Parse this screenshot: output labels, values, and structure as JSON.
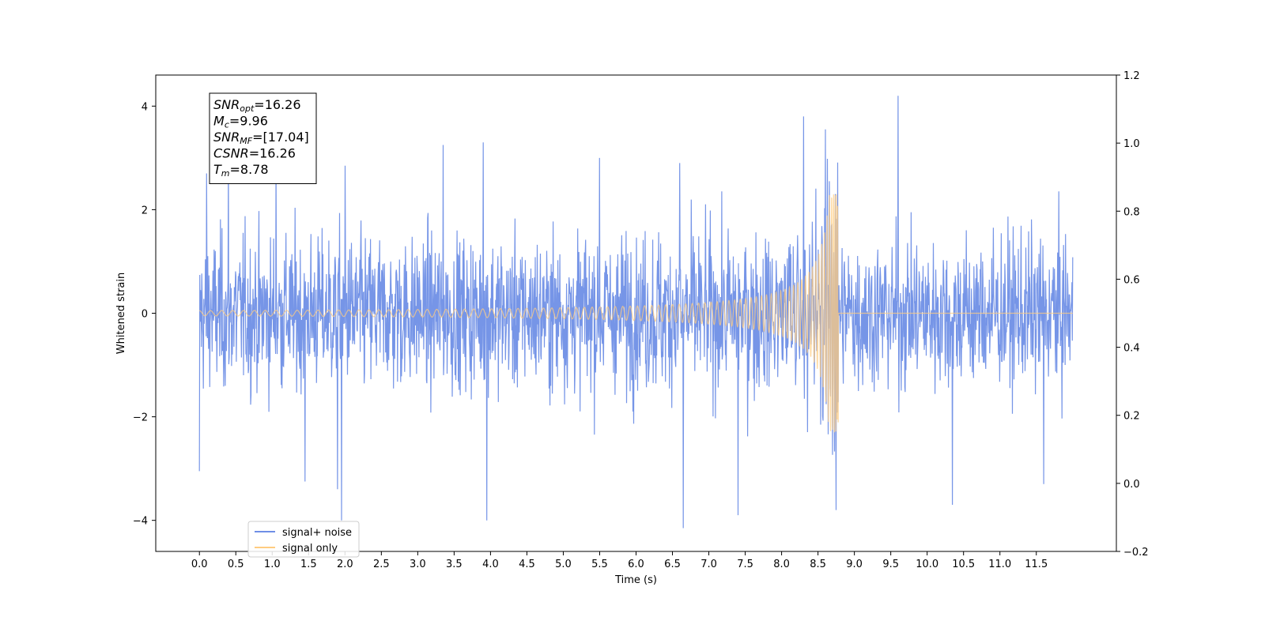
{
  "chart_data": {
    "type": "line",
    "xlabel": "Time (s)",
    "ylabel": "Whitened strain",
    "xlim": [
      -0.6,
      12.6
    ],
    "ylim": [
      -4.6,
      4.6
    ],
    "ylim_right": [
      -0.2,
      1.2
    ],
    "x_ticks": [
      "0.0",
      "0.5",
      "1.0",
      "1.5",
      "2.0",
      "2.5",
      "3.0",
      "3.5",
      "4.0",
      "4.5",
      "5.0",
      "5.5",
      "6.0",
      "6.5",
      "7.0",
      "7.5",
      "8.0",
      "8.5",
      "9.0",
      "9.5",
      "10.0",
      "10.5",
      "11.0",
      "11.5"
    ],
    "y_ticks": [
      "4",
      "2",
      "0",
      "−2",
      "−4"
    ],
    "y_ticks_right": [
      "1.2",
      "1.0",
      "0.8",
      "0.6",
      "0.4",
      "0.2",
      "0.0",
      "−0.2"
    ],
    "grid": false,
    "legend_position": "lower-left",
    "annotation": {
      "lines": [
        {
          "base": "SNR",
          "sub": "opt",
          "value": "=16.26"
        },
        {
          "base": "M",
          "sub": "c",
          "value": "=9.96"
        },
        {
          "base": "SNR",
          "sub": "MF",
          "value": "=[17.04]"
        },
        {
          "base": "CSNR",
          "sub": "",
          "value": "=16.26"
        },
        {
          "base": "T",
          "sub": "m",
          "value": "=8.78"
        }
      ]
    },
    "series": [
      {
        "name": "signal+ noise",
        "color": "#6f8fe6",
        "x_range": [
          0.0,
          12.0
        ],
        "noise_band_typical": [
          -1.5,
          1.5
        ],
        "peaks": [
          {
            "x": 0.0,
            "y": -3.05
          },
          {
            "x": 0.1,
            "y": 2.7
          },
          {
            "x": 0.4,
            "y": 2.95
          },
          {
            "x": 1.05,
            "y": 3.0
          },
          {
            "x": 1.45,
            "y": -3.25
          },
          {
            "x": 1.9,
            "y": -3.4
          },
          {
            "x": 1.95,
            "y": -4.0
          },
          {
            "x": 2.0,
            "y": 2.85
          },
          {
            "x": 3.35,
            "y": 3.25
          },
          {
            "x": 3.95,
            "y": -4.0
          },
          {
            "x": 3.9,
            "y": 3.3
          },
          {
            "x": 5.5,
            "y": 3.0
          },
          {
            "x": 6.65,
            "y": -4.15
          },
          {
            "x": 6.6,
            "y": 2.9
          },
          {
            "x": 7.4,
            "y": -3.9
          },
          {
            "x": 8.3,
            "y": 3.8
          },
          {
            "x": 8.6,
            "y": 3.55
          },
          {
            "x": 8.75,
            "y": -3.8
          },
          {
            "x": 9.6,
            "y": 4.2
          },
          {
            "x": 10.35,
            "y": -3.7
          },
          {
            "x": 11.6,
            "y": -3.3
          }
        ]
      },
      {
        "name": "signal only",
        "color": "#ffcc80",
        "x_range": [
          0.0,
          12.0
        ],
        "merger_time": 8.78,
        "start_amplitude": 0.05,
        "peak_amplitude": 2.3
      }
    ]
  }
}
